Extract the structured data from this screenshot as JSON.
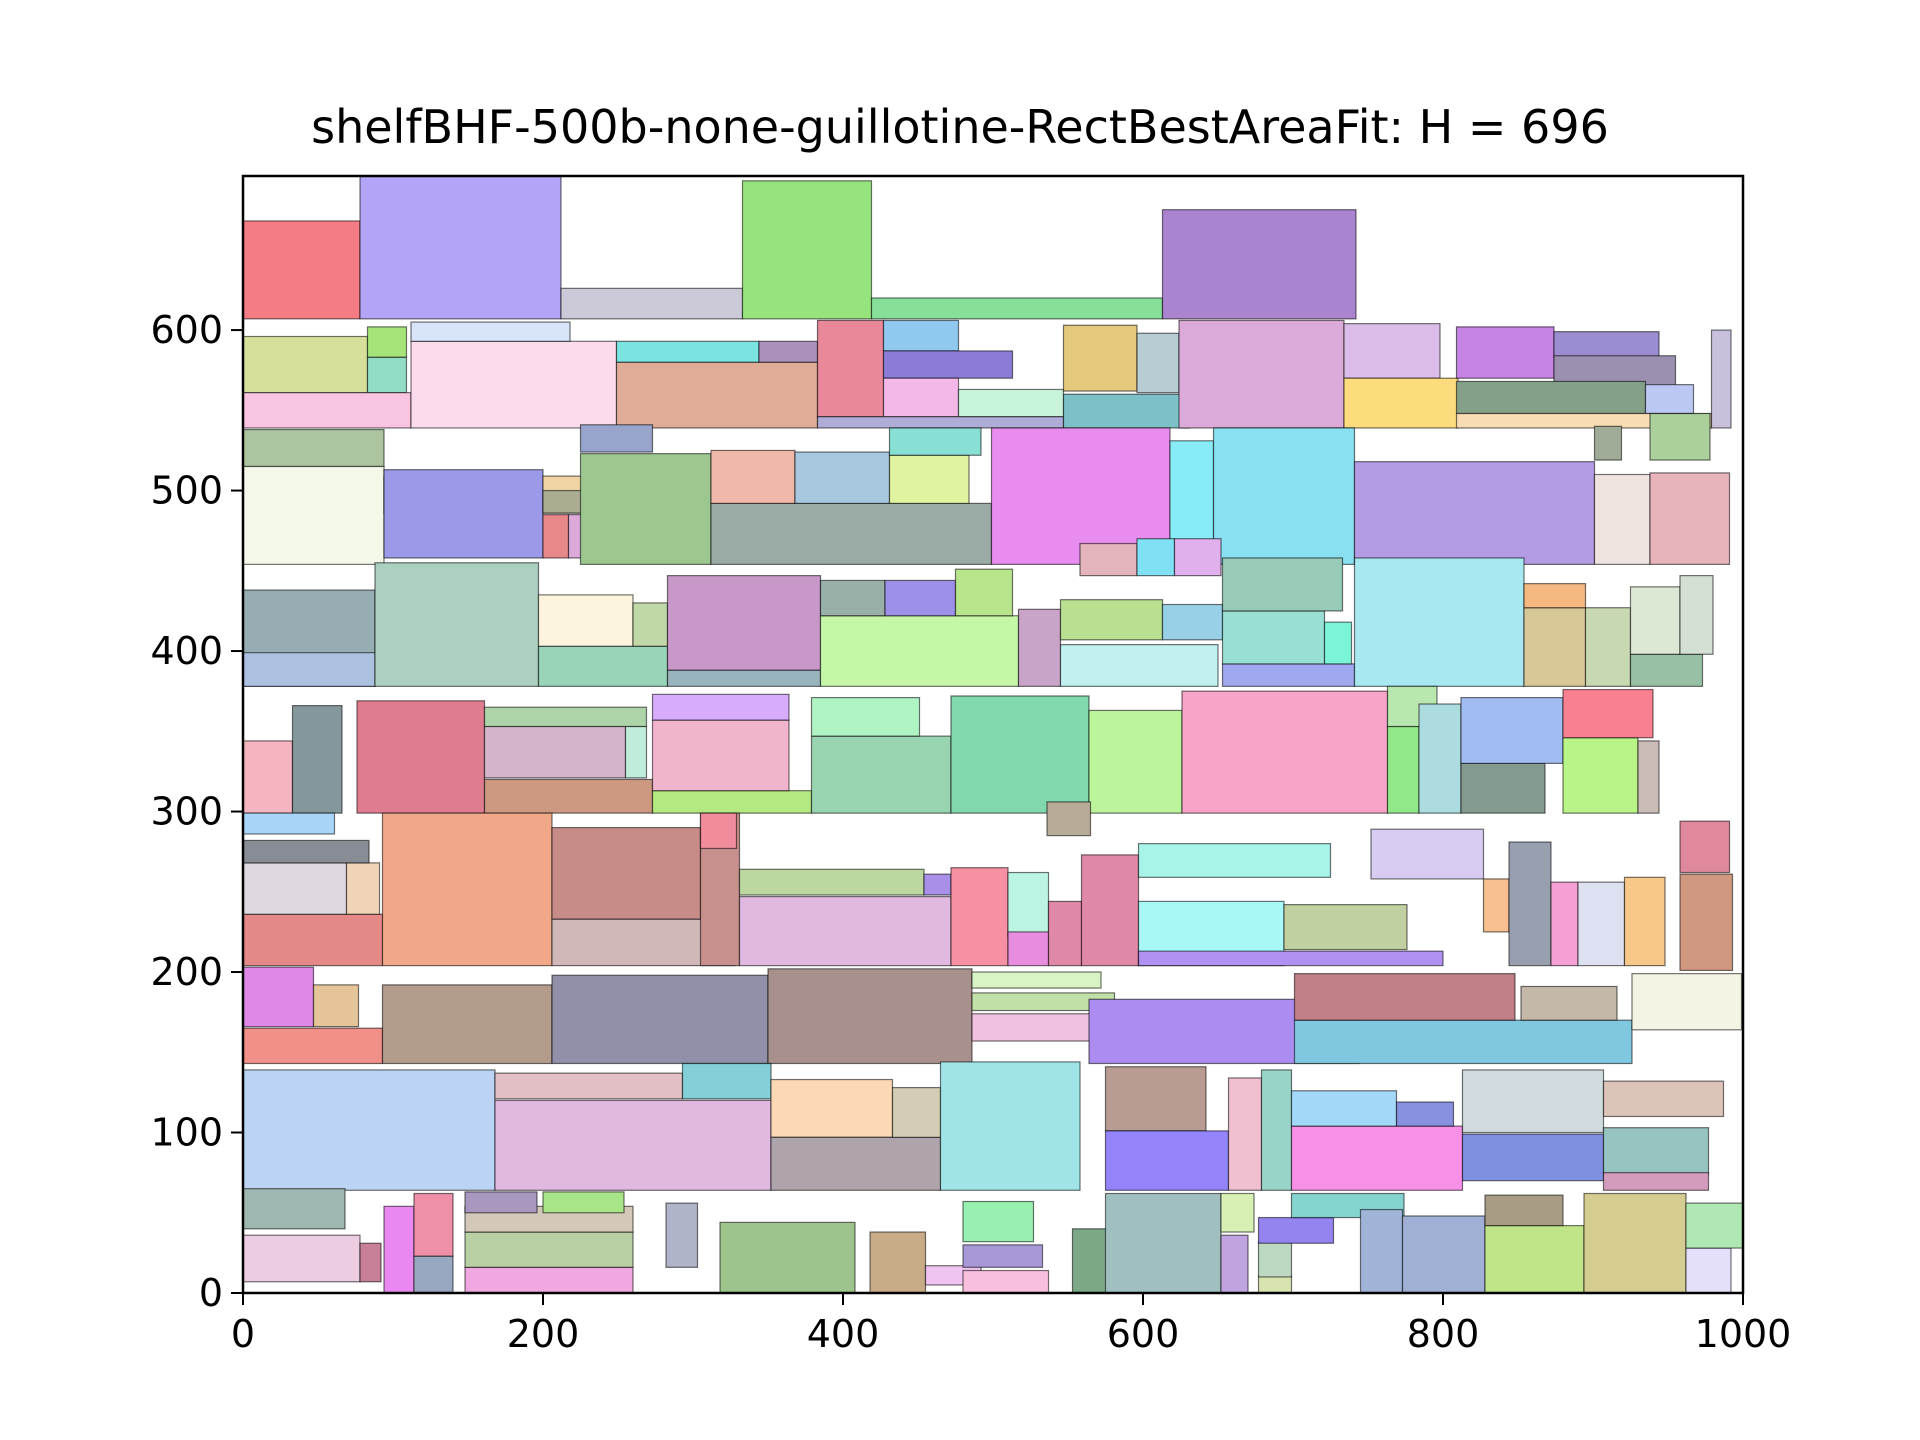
{
  "chart_data": {
    "type": "rectangle-packing",
    "title": "shelfBHF-500b-none-guillotine-RectBestAreaFit: H = 696",
    "xlim": [
      0,
      1000
    ],
    "ylim": [
      0,
      696
    ],
    "xticks": [
      0,
      200,
      400,
      600,
      800,
      1000
    ],
    "yticks": [
      0,
      100,
      200,
      300,
      400,
      500,
      600
    ],
    "grid": false,
    "rect_format": [
      "x",
      "y",
      "width",
      "height",
      "fill"
    ],
    "rects": [
      [
        0,
        607,
        78,
        61,
        "#f47c84"
      ],
      [
        78,
        607,
        134,
        89,
        "#b3a4f8"
      ],
      [
        212,
        607,
        121,
        19,
        "#cccad8"
      ],
      [
        333,
        607,
        86,
        86,
        "#98e47c"
      ],
      [
        419,
        607,
        194,
        13,
        "#86e09a"
      ],
      [
        613,
        607,
        129,
        68,
        "#ab84d0"
      ],
      [
        0,
        561,
        83,
        35,
        "#d7e09a"
      ],
      [
        83,
        583,
        26,
        19,
        "#a6e47a"
      ],
      [
        83,
        561,
        26,
        22,
        "#90dcc4"
      ],
      [
        0,
        539,
        112,
        22,
        "#f8c4e0"
      ],
      [
        112,
        539,
        137,
        54,
        "#fcdcec"
      ],
      [
        112,
        593,
        106,
        12,
        "#d8e4f8"
      ],
      [
        249,
        539,
        134,
        41,
        "#e0ac98"
      ],
      [
        249,
        580,
        95,
        13,
        "#7ce4e0"
      ],
      [
        344,
        580,
        39,
        13,
        "#ac90bc"
      ],
      [
        383,
        546,
        44,
        60,
        "#e88898"
      ],
      [
        427,
        587,
        50,
        19,
        "#90c8f0"
      ],
      [
        427,
        570,
        86,
        17,
        "#8c7cd8"
      ],
      [
        427,
        546,
        50,
        24,
        "#f4b8e8"
      ],
      [
        477,
        546,
        70,
        17,
        "#c8f4dc"
      ],
      [
        383,
        539,
        164,
        7,
        "#b0acd8"
      ],
      [
        547,
        562,
        49,
        41,
        "#e4c87c"
      ],
      [
        547,
        539,
        84,
        21,
        "#7cc0c8"
      ],
      [
        596,
        561,
        28,
        37,
        "#b8ccd4"
      ],
      [
        624,
        539,
        110,
        67,
        "#dcaad8"
      ],
      [
        734,
        570,
        64,
        34,
        "#dcbce8"
      ],
      [
        734,
        539,
        76,
        31,
        "#fcdc7c"
      ],
      [
        809,
        570,
        65,
        32,
        "#c684e4"
      ],
      [
        874,
        583,
        70,
        16,
        "#9c8cd0"
      ],
      [
        874,
        560,
        81,
        24,
        "#9c90b0"
      ],
      [
        809,
        548,
        126,
        20,
        "#84a088"
      ],
      [
        935,
        548,
        32,
        18,
        "#bcc8f4"
      ],
      [
        809,
        539,
        170,
        9,
        "#f8dcb4"
      ],
      [
        979,
        539,
        13,
        61,
        "#c8c0dc"
      ],
      [
        0,
        515,
        94,
        23,
        "#acc4a0"
      ],
      [
        0,
        454,
        94,
        61,
        "#f4f8e8"
      ],
      [
        94,
        486,
        106,
        23,
        "#e0bcc8"
      ],
      [
        94,
        458,
        106,
        55,
        "#9c9ae8"
      ],
      [
        200,
        486,
        32,
        23,
        "#f0d4a4"
      ],
      [
        200,
        486,
        28,
        14,
        "#acac90"
      ],
      [
        200,
        458,
        17,
        27,
        "#e88888"
      ],
      [
        217,
        458,
        12,
        27,
        "#dcaad8"
      ],
      [
        225,
        454,
        87,
        69,
        "#9cc890"
      ],
      [
        225,
        524,
        48,
        17,
        "#98a4cc"
      ],
      [
        312,
        454,
        187,
        38,
        "#9aaaa4"
      ],
      [
        312,
        492,
        56,
        33,
        "#f0b8a8"
      ],
      [
        368,
        492,
        63,
        32,
        "#a8c8e0"
      ],
      [
        431,
        492,
        53,
        30,
        "#e0f4a0"
      ],
      [
        431,
        522,
        61,
        17,
        "#88e0d4"
      ],
      [
        499,
        454,
        119,
        85,
        "#e88cf0"
      ],
      [
        618,
        454,
        29,
        77,
        "#88ecf8"
      ],
      [
        647,
        454,
        94,
        85,
        "#88e0f0"
      ],
      [
        741,
        454,
        160,
        64,
        "#b49ce4"
      ],
      [
        901,
        454,
        37,
        56,
        "#f0e4e0"
      ],
      [
        938,
        454,
        53,
        57,
        "#e8b4bc"
      ],
      [
        938,
        519,
        40,
        29,
        "#acd09c"
      ],
      [
        901,
        519,
        18,
        21,
        "#a0ac98"
      ],
      [
        0,
        378,
        88,
        60,
        "#98acb4"
      ],
      [
        0,
        378,
        88,
        21,
        "#acc0e0"
      ],
      [
        88,
        378,
        109,
        77,
        "#acd0c0"
      ],
      [
        197,
        378,
        86,
        25,
        "#98d4b8"
      ],
      [
        197,
        403,
        63,
        32,
        "#fcf4dc"
      ],
      [
        260,
        403,
        23,
        27,
        "#c0d8a8"
      ],
      [
        283,
        388,
        102,
        59,
        "#c898c8"
      ],
      [
        283,
        378,
        102,
        10,
        "#98b4bc"
      ],
      [
        385,
        378,
        132,
        44,
        "#c4f8a8"
      ],
      [
        385,
        422,
        43,
        22,
        "#98b0a8"
      ],
      [
        428,
        422,
        47,
        22,
        "#9c90e8"
      ],
      [
        475,
        422,
        38,
        29,
        "#b8e48c"
      ],
      [
        517,
        378,
        28,
        48,
        "#c8a4c8"
      ],
      [
        545,
        378,
        105,
        26,
        "#c0f0f0"
      ],
      [
        545,
        407,
        68,
        25,
        "#b8e090"
      ],
      [
        613,
        407,
        40,
        22,
        "#98d0e8"
      ],
      [
        653,
        378,
        88,
        14,
        "#a0a8f0"
      ],
      [
        653,
        392,
        68,
        33,
        "#98e0d4"
      ],
      [
        721,
        392,
        18,
        26,
        "#7cf4d8"
      ],
      [
        653,
        425,
        80,
        33,
        "#98ccb8"
      ],
      [
        741,
        378,
        113,
        80,
        "#a8e8f0"
      ],
      [
        854,
        378,
        41,
        49,
        "#d8c898"
      ],
      [
        895,
        378,
        30,
        49,
        "#c8d8b0"
      ],
      [
        925,
        378,
        48,
        20,
        "#98c0a4"
      ],
      [
        925,
        398,
        33,
        42,
        "#dce8d4"
      ],
      [
        958,
        398,
        22,
        49,
        "#d4e0d4"
      ],
      [
        854,
        427,
        41,
        15,
        "#f4b880"
      ],
      [
        558,
        447,
        38,
        20,
        "#e4b4bc"
      ],
      [
        596,
        447,
        25,
        23,
        "#80e0f4"
      ],
      [
        621,
        447,
        31,
        23,
        "#e0b0ec"
      ],
      [
        0,
        299,
        33,
        45,
        "#f4b4c0"
      ],
      [
        33,
        299,
        33,
        67,
        "#84989c"
      ],
      [
        76,
        299,
        85,
        70,
        "#e07c90"
      ],
      [
        161,
        299,
        112,
        21,
        "#cc9880"
      ],
      [
        161,
        321,
        94,
        32,
        "#d4b4c8"
      ],
      [
        255,
        321,
        14,
        32,
        "#c0ecdc"
      ],
      [
        161,
        353,
        108,
        12,
        "#acd4a8"
      ],
      [
        273,
        299,
        106,
        14,
        "#b4e880"
      ],
      [
        273,
        313,
        91,
        44,
        "#f0b4cc"
      ],
      [
        273,
        357,
        91,
        16,
        "#d8acfc"
      ],
      [
        379,
        299,
        93,
        48,
        "#98d4b0"
      ],
      [
        379,
        347,
        72,
        24,
        "#b0f4c4"
      ],
      [
        472,
        299,
        92,
        73,
        "#80d8ac"
      ],
      [
        564,
        299,
        62,
        64,
        "#bcf49c"
      ],
      [
        626,
        299,
        137,
        76,
        "#f8a4c8"
      ],
      [
        763,
        299,
        21,
        54,
        "#90e888"
      ],
      [
        763,
        353,
        33,
        25,
        "#b8e8b0"
      ],
      [
        784,
        299,
        28,
        68,
        "#acdce0"
      ],
      [
        812,
        299,
        56,
        31,
        "#849c90"
      ],
      [
        812,
        330,
        68,
        41,
        "#a0bcf0"
      ],
      [
        880,
        299,
        50,
        47,
        "#b8f488"
      ],
      [
        880,
        346,
        60,
        30,
        "#f88090"
      ],
      [
        930,
        299,
        14,
        45,
        "#ccbcb8"
      ],
      [
        0,
        204,
        93,
        32,
        "#e48888"
      ],
      [
        0,
        236,
        69,
        32,
        "#e0d8e0"
      ],
      [
        69,
        236,
        22,
        32,
        "#f0d4b8"
      ],
      [
        0,
        268,
        84,
        14,
        "#888c94"
      ],
      [
        0,
        286,
        61,
        13,
        "#a8d4f8"
      ],
      [
        93,
        204,
        113,
        95,
        "#f0a888"
      ],
      [
        206,
        204,
        122,
        29,
        "#d0b8b8"
      ],
      [
        206,
        233,
        99,
        57,
        "#c88c88"
      ],
      [
        305,
        204,
        26,
        95,
        "#c8908c"
      ],
      [
        305,
        277,
        24,
        22,
        "#f08c9c"
      ],
      [
        331,
        204,
        141,
        43,
        "#e0b8e0"
      ],
      [
        331,
        248,
        123,
        16,
        "#bcd8a0"
      ],
      [
        454,
        248,
        18,
        13,
        "#a890e8"
      ],
      [
        472,
        204,
        38,
        61,
        "#f890a4"
      ],
      [
        510,
        222,
        27,
        40,
        "#bcf4e4"
      ],
      [
        510,
        204,
        27,
        21,
        "#e88ce0"
      ],
      [
        537,
        204,
        22,
        40,
        "#e088a8"
      ],
      [
        559,
        204,
        38,
        69,
        "#e088a8"
      ],
      [
        597,
        204,
        97,
        40,
        "#a8f8f8"
      ],
      [
        597,
        259,
        128,
        21,
        "#a8f4e8"
      ],
      [
        694,
        214,
        82,
        28,
        "#c0d0a0"
      ],
      [
        597,
        204,
        203,
        9,
        "#b090f0"
      ],
      [
        752,
        258,
        75,
        31,
        "#d8ccf0"
      ],
      [
        827,
        225,
        17,
        33,
        "#f8c090"
      ],
      [
        844,
        204,
        28,
        77,
        "#98a0b0"
      ],
      [
        872,
        204,
        18,
        52,
        "#f4a0d4"
      ],
      [
        890,
        204,
        31,
        52,
        "#dce0f0"
      ],
      [
        921,
        204,
        27,
        55,
        "#f8c888"
      ],
      [
        958,
        201,
        35,
        60,
        "#d09880"
      ],
      [
        958,
        262,
        33,
        32,
        "#e0889c"
      ],
      [
        536,
        285,
        29,
        21,
        "#b8ac98"
      ],
      [
        0,
        143,
        93,
        22,
        "#f09088"
      ],
      [
        0,
        166,
        47,
        37,
        "#e088e8"
      ],
      [
        47,
        166,
        30,
        26,
        "#e4c498"
      ],
      [
        93,
        143,
        113,
        49,
        "#b49c8c"
      ],
      [
        206,
        143,
        144,
        55,
        "#9090a8"
      ],
      [
        350,
        143,
        136,
        59,
        "#a8908c"
      ],
      [
        486,
        157,
        115,
        17,
        "#f0c0e0"
      ],
      [
        486,
        176,
        95,
        11,
        "#c0e0a8"
      ],
      [
        486,
        190,
        86,
        10,
        "#d8f4c4"
      ],
      [
        564,
        143,
        180,
        40,
        "#ac8cf0"
      ],
      [
        701,
        143,
        225,
        27,
        "#80c8e0"
      ],
      [
        701,
        170,
        147,
        29,
        "#c08088"
      ],
      [
        926,
        164,
        73,
        35,
        "#f4f4e4"
      ],
      [
        852,
        170,
        64,
        21,
        "#c4b8a8"
      ],
      [
        0,
        64,
        168,
        75,
        "#bcd4f4"
      ],
      [
        168,
        64,
        184,
        56,
        "#e0b8e0"
      ],
      [
        168,
        121,
        125,
        16,
        "#e0c0c4"
      ],
      [
        293,
        121,
        59,
        22,
        "#84d0d8"
      ],
      [
        352,
        97,
        81,
        36,
        "#fcd8b4"
      ],
      [
        352,
        64,
        113,
        33,
        "#b0a4ac"
      ],
      [
        433,
        97,
        32,
        31,
        "#d4ccb4"
      ],
      [
        465,
        64,
        93,
        80,
        "#a0e4e8"
      ],
      [
        575,
        101,
        67,
        40,
        "#b89c94"
      ],
      [
        575,
        64,
        82,
        37,
        "#9484fc"
      ],
      [
        657,
        64,
        22,
        70,
        "#f0c0d0"
      ],
      [
        679,
        64,
        20,
        75,
        "#98d4c8"
      ],
      [
        699,
        64,
        114,
        40,
        "#f890e8"
      ],
      [
        699,
        104,
        70,
        22,
        "#a4d8f8"
      ],
      [
        769,
        104,
        38,
        15,
        "#8890e0"
      ],
      [
        813,
        70,
        94,
        29,
        "#8090e0"
      ],
      [
        813,
        100,
        94,
        39,
        "#d0dce0"
      ],
      [
        907,
        74,
        70,
        29,
        "#98c4c0"
      ],
      [
        907,
        64,
        70,
        11,
        "#d49cbc"
      ],
      [
        907,
        110,
        80,
        22,
        "#dcc4b8"
      ],
      [
        0,
        7,
        78,
        29,
        "#eccce0"
      ],
      [
        0,
        40,
        68,
        25,
        "#9cb8b0"
      ],
      [
        78,
        7,
        14,
        24,
        "#c88098"
      ],
      [
        94,
        0,
        20,
        54,
        "#e888f0"
      ],
      [
        114,
        0,
        26,
        23,
        "#98a8c0"
      ],
      [
        114,
        23,
        26,
        39,
        "#f090a8"
      ],
      [
        148,
        0,
        112,
        16,
        "#f0a8e0"
      ],
      [
        148,
        16,
        112,
        22,
        "#b8d0a4"
      ],
      [
        148,
        38,
        112,
        16,
        "#d4c8b8"
      ],
      [
        148,
        50,
        48,
        13,
        "#a898c0"
      ],
      [
        200,
        50,
        54,
        13,
        "#a8e488"
      ],
      [
        282,
        16,
        21,
        40,
        "#b0b4c8"
      ],
      [
        318,
        0,
        90,
        44,
        "#9cc48c"
      ],
      [
        418,
        0,
        37,
        38,
        "#c8ac88"
      ],
      [
        455,
        5,
        37,
        12,
        "#f0c4f0"
      ],
      [
        480,
        0,
        57,
        14,
        "#f8c0dc"
      ],
      [
        480,
        16,
        53,
        14,
        "#a898d8"
      ],
      [
        480,
        32,
        47,
        25,
        "#98f0b0"
      ],
      [
        553,
        0,
        32,
        40,
        "#7ca888"
      ],
      [
        575,
        0,
        77,
        62,
        "#a0c0c0"
      ],
      [
        652,
        0,
        18,
        36,
        "#c0a4e0"
      ],
      [
        652,
        38,
        22,
        24,
        "#d8f0b4"
      ],
      [
        677,
        0,
        22,
        11,
        "#d8e4b0"
      ],
      [
        677,
        10,
        22,
        22,
        "#bcd8c0"
      ],
      [
        677,
        31,
        50,
        16,
        "#9484f0"
      ],
      [
        699,
        47,
        75,
        15,
        "#84d4d0"
      ],
      [
        745,
        0,
        28,
        52,
        "#a0b4d8"
      ],
      [
        773,
        0,
        55,
        48,
        "#a0b0d4"
      ],
      [
        828,
        0,
        66,
        42,
        "#c0e488"
      ],
      [
        894,
        0,
        68,
        62,
        "#d4cc90"
      ],
      [
        962,
        0,
        30,
        28,
        "#e4e0fc"
      ],
      [
        962,
        28,
        38,
        28,
        "#b0e8b4"
      ],
      [
        828,
        42,
        52,
        19,
        "#a89c84"
      ]
    ]
  }
}
